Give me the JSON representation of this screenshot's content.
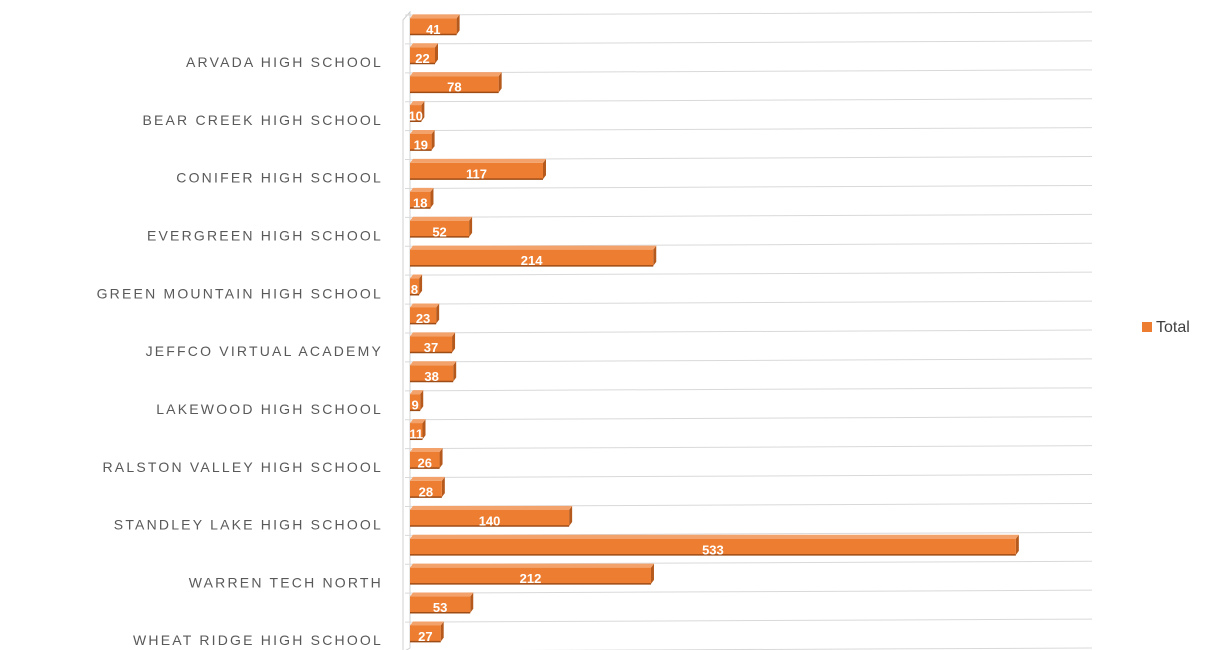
{
  "chart_data": {
    "type": "bar",
    "orientation": "horizontal",
    "categories": [
      null,
      "ARVADA HIGH SCHOOL",
      null,
      "BEAR CREEK HIGH SCHOOL",
      null,
      "CONIFER HIGH SCHOOL",
      null,
      "EVERGREEN HIGH SCHOOL",
      null,
      "GREEN MOUNTAIN HIGH SCHOOL",
      null,
      "JEFFCO VIRTUAL ACADEMY",
      null,
      "LAKEWOOD HIGH SCHOOL",
      null,
      "RALSTON VALLEY HIGH SCHOOL",
      null,
      "STANDLEY LAKE HIGH SCHOOL",
      null,
      "WARREN TECH NORTH",
      null,
      "WHEAT RIDGE HIGH SCHOOL"
    ],
    "series": [
      {
        "name": "Total",
        "color": "#ed7d31",
        "values": [
          41,
          22,
          78,
          10,
          19,
          117,
          18,
          52,
          214,
          8,
          23,
          37,
          38,
          9,
          11,
          26,
          28,
          140,
          533,
          212,
          53,
          27
        ]
      }
    ],
    "xlim": [
      0,
      600
    ],
    "grid": true,
    "legend": "right"
  }
}
